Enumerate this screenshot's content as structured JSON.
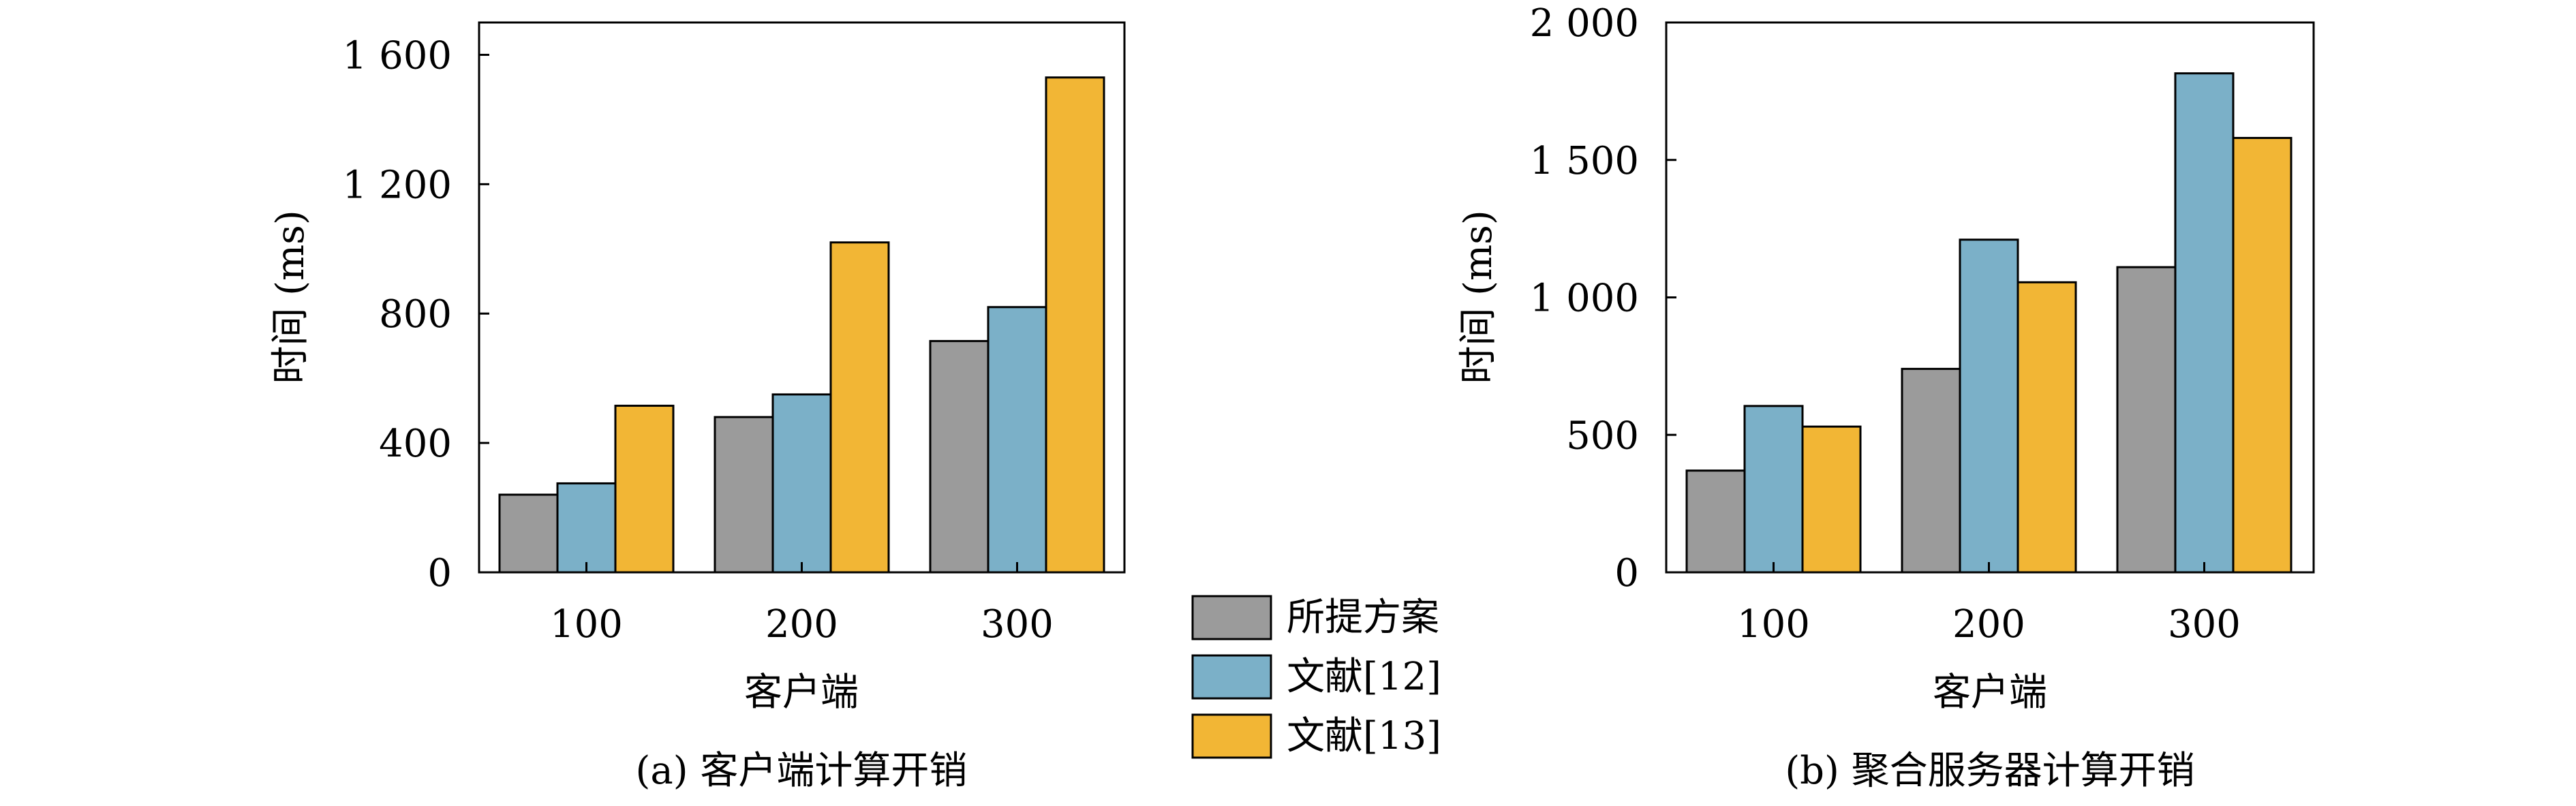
{
  "colors": {
    "series": [
      "#9b9b9b",
      "#7bb0c8",
      "#f2b635"
    ],
    "axis": "#000000"
  },
  "legend": {
    "items": [
      "所提方案",
      "文献[12]",
      "文献[13]"
    ]
  },
  "chart_data": [
    {
      "type": "bar",
      "caption": "(a) 客户端计算开销",
      "xlabel": "客户端",
      "ylabel": "时间 (ms)",
      "categories": [
        "100",
        "200",
        "300"
      ],
      "ylim": [
        0,
        1700
      ],
      "yticks": [
        0,
        400,
        800,
        1200,
        1600
      ],
      "ytick_labels": [
        "0",
        "400",
        "800",
        "1 200",
        "1 600"
      ],
      "series": [
        {
          "name": "所提方案",
          "values": [
            240,
            480,
            715
          ]
        },
        {
          "name": "文献[12]",
          "values": [
            275,
            550,
            820
          ]
        },
        {
          "name": "文献[13]",
          "values": [
            515,
            1020,
            1530
          ]
        }
      ],
      "grid": false,
      "legend_position": "right"
    },
    {
      "type": "bar",
      "caption": "(b) 聚合服务器计算开销",
      "xlabel": "客户端",
      "ylabel": "时间 (ms)",
      "categories": [
        "100",
        "200",
        "300"
      ],
      "ylim": [
        0,
        2000
      ],
      "yticks": [
        0,
        500,
        1000,
        1500,
        2000
      ],
      "ytick_labels": [
        "0",
        "500",
        "1 000",
        "1 500",
        "2 000"
      ],
      "series": [
        {
          "name": "所提方案",
          "values": [
            370,
            740,
            1110
          ]
        },
        {
          "name": "文献[12]",
          "values": [
            605,
            1210,
            1815
          ]
        },
        {
          "name": "文献[13]",
          "values": [
            530,
            1055,
            1580
          ]
        }
      ],
      "grid": false,
      "legend_position": "left"
    }
  ]
}
